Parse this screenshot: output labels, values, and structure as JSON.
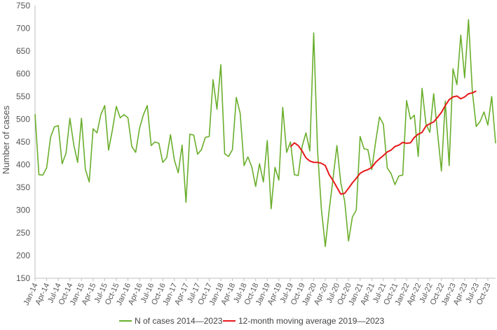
{
  "chart_data": {
    "type": "line",
    "ylabel": "Number of cases",
    "xlabel": "",
    "ylim": [
      150,
      750
    ],
    "y_ticks": [
      150,
      200,
      250,
      300,
      350,
      400,
      450,
      500,
      550,
      600,
      650,
      700,
      750
    ],
    "grid": false,
    "legend_position": "bottom",
    "x_tick_labels": [
      "Jan-14",
      "Apr-14",
      "Jul-14",
      "Oct-14",
      "Jan-15",
      "Apr-15",
      "Jul-15",
      "Oct-15",
      "Jan-16",
      "Apr-16",
      "Jul-16",
      "Oct-16",
      "Jan-17",
      "Apr-17",
      "Jul-17",
      "Oct-17",
      "Jan-18",
      "Apr-18",
      "Jul-18",
      "Oct-18",
      "Jan-19",
      "Apr-19",
      "Jul-19",
      "Oct-19",
      "Jan-20",
      "Apr-20",
      "Jul-20",
      "Oct-20",
      "Jan-21",
      "Apr-21",
      "Jul-21",
      "Oct-21",
      "Jan-22",
      "Apr-22",
      "Jul-22",
      "Oct-22",
      "Jan-23",
      "Apr-23",
      "Jul-23",
      "Oct-23"
    ],
    "x_start": "Jan-14",
    "series": [
      {
        "name": "N of cases 2014—2023",
        "color": "#6aae2c",
        "start": "Jan-14",
        "values": [
          511,
          378,
          377,
          393,
          460,
          483,
          486,
          402,
          425,
          502,
          444,
          405,
          502,
          390,
          362,
          479,
          470,
          510,
          530,
          432,
          477,
          528,
          503,
          510,
          503,
          440,
          427,
          480,
          510,
          530,
          442,
          450,
          447,
          405,
          415,
          466,
          410,
          382,
          443,
          317,
          467,
          465,
          423,
          433,
          460,
          462,
          587,
          522,
          620,
          424,
          418,
          433,
          548,
          513,
          398,
          417,
          395,
          352,
          402,
          362,
          453,
          303,
          394,
          366,
          526,
          427,
          450,
          378,
          376,
          440,
          470,
          430,
          690,
          430,
          301,
          220,
          300,
          370,
          442,
          360,
          320,
          232,
          285,
          300,
          462,
          435,
          433,
          389,
          450,
          505,
          489,
          393,
          380,
          356,
          375,
          377,
          541,
          500,
          509,
          418,
          568,
          490,
          471,
          556,
          470,
          386,
          540,
          398,
          611,
          576,
          685,
          591,
          719,
          560,
          484,
          495,
          516,
          487,
          550,
          447
        ]
      },
      {
        "name": "12-month moving average 2019—2023",
        "color": "#e8191b",
        "start": "Jul-19",
        "values": [
          439,
          448,
          442,
          430,
          415,
          408,
          405,
          405,
          403,
          398,
          378,
          365,
          350,
          335,
          337,
          348,
          360,
          370,
          381,
          386,
          389,
          394,
          405,
          413,
          420,
          428,
          432,
          440,
          443,
          449,
          447,
          448,
          460,
          467,
          471,
          485,
          490,
          494,
          504,
          515,
          530,
          543,
          549,
          551,
          545,
          549,
          556,
          558,
          562
        ]
      }
    ]
  }
}
